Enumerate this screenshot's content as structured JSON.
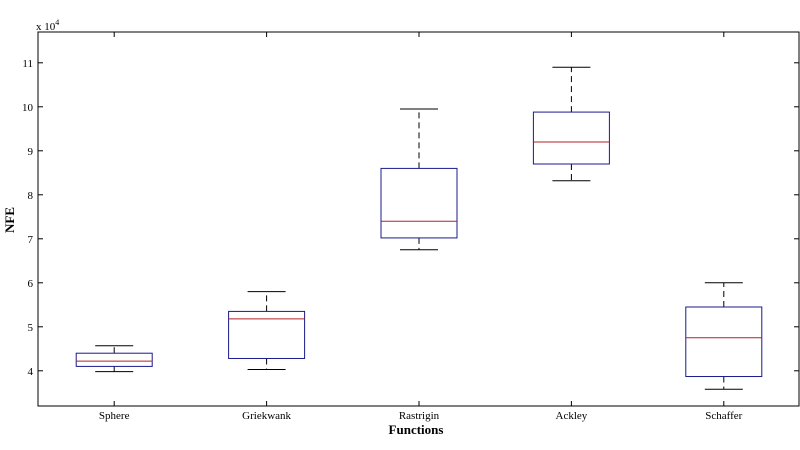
{
  "chart_data": {
    "type": "box",
    "title": "",
    "xlabel": "Functions",
    "ylabel": "NFE",
    "exponent_label": "x 10",
    "exponent_power": "4",
    "ylim": [
      3.2,
      11.7
    ],
    "yticks": [
      4,
      5,
      6,
      7,
      8,
      9,
      10,
      11
    ],
    "ytick_labels": [
      "4",
      "5",
      "6",
      "7",
      "8",
      "9",
      "10",
      "11"
    ],
    "grid": false,
    "colors": {
      "box": "#1a1a8c",
      "median": "#b22222",
      "whisker": "#000000",
      "axis": "#000000"
    },
    "series": [
      {
        "name": "Sphere",
        "whisker_low": 3.98,
        "q1": 4.1,
        "median": 4.22,
        "q3": 4.4,
        "whisker_high": 4.57
      },
      {
        "name": "Griekwank",
        "whisker_low": 4.03,
        "q1": 4.28,
        "median": 5.18,
        "q3": 5.35,
        "whisker_high": 5.8
      },
      {
        "name": "Rastrigin",
        "whisker_low": 6.75,
        "q1": 7.02,
        "median": 7.4,
        "q3": 8.6,
        "whisker_high": 9.95
      },
      {
        "name": "Ackley",
        "whisker_low": 8.32,
        "q1": 8.7,
        "median": 9.2,
        "q3": 9.88,
        "whisker_high": 10.9
      },
      {
        "name": "Schaffer",
        "whisker_low": 3.58,
        "q1": 3.87,
        "median": 4.75,
        "q3": 5.45,
        "whisker_high": 6.0
      }
    ]
  }
}
